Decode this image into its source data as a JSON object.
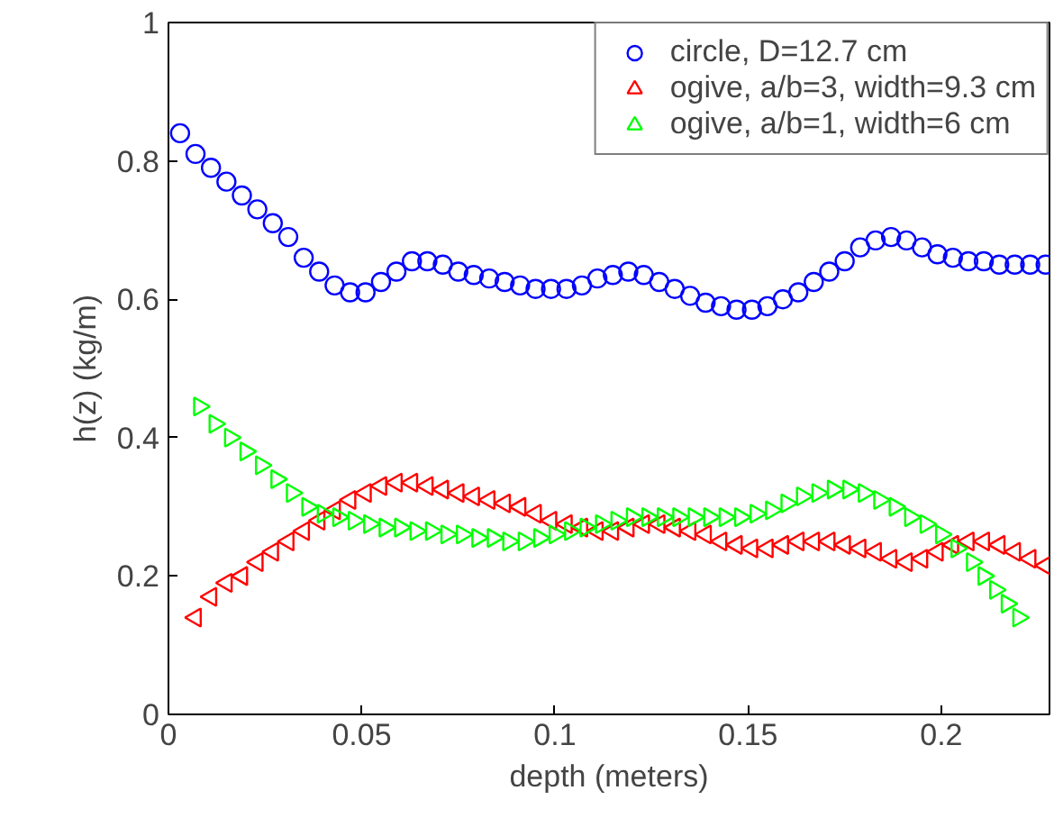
{
  "chart_data": {
    "type": "scatter",
    "xlabel": "depth (meters)",
    "ylabel": "h(z) (kg/m)",
    "xlim": [
      0,
      0.228
    ],
    "ylim": [
      0,
      1
    ],
    "xticks": [
      0,
      0.05,
      0.1,
      0.15,
      0.2
    ],
    "yticks": [
      0,
      0.2,
      0.4,
      0.6,
      0.8,
      1
    ],
    "grid": false,
    "legend": "top right",
    "series": [
      {
        "name": "circle, D=12.7 cm",
        "color": "#0000ff",
        "marker": "circle",
        "x": [
          0.003,
          0.007,
          0.011,
          0.015,
          0.019,
          0.023,
          0.027,
          0.031,
          0.035,
          0.039,
          0.043,
          0.047,
          0.051,
          0.055,
          0.059,
          0.063,
          0.067,
          0.071,
          0.075,
          0.079,
          0.083,
          0.087,
          0.091,
          0.095,
          0.099,
          0.103,
          0.107,
          0.111,
          0.115,
          0.119,
          0.123,
          0.127,
          0.131,
          0.135,
          0.139,
          0.143,
          0.147,
          0.151,
          0.155,
          0.159,
          0.163,
          0.167,
          0.171,
          0.175,
          0.179,
          0.183,
          0.187,
          0.191,
          0.195,
          0.199,
          0.203,
          0.207,
          0.211,
          0.215,
          0.219,
          0.223,
          0.227
        ],
        "values": [
          0.84,
          0.81,
          0.79,
          0.77,
          0.75,
          0.73,
          0.71,
          0.69,
          0.66,
          0.64,
          0.62,
          0.61,
          0.61,
          0.625,
          0.64,
          0.655,
          0.655,
          0.65,
          0.64,
          0.635,
          0.63,
          0.625,
          0.62,
          0.615,
          0.615,
          0.615,
          0.62,
          0.63,
          0.635,
          0.64,
          0.635,
          0.625,
          0.615,
          0.605,
          0.595,
          0.59,
          0.585,
          0.585,
          0.59,
          0.6,
          0.61,
          0.625,
          0.64,
          0.655,
          0.675,
          0.685,
          0.69,
          0.685,
          0.675,
          0.665,
          0.66,
          0.655,
          0.655,
          0.65,
          0.65,
          0.65,
          0.65
        ]
      },
      {
        "name": "ogive, a/b=3, width=9.3 cm",
        "color": "#ff0000",
        "marker": "triangle-left",
        "x": [
          0.007,
          0.011,
          0.015,
          0.019,
          0.023,
          0.027,
          0.031,
          0.035,
          0.039,
          0.043,
          0.047,
          0.051,
          0.055,
          0.059,
          0.063,
          0.067,
          0.071,
          0.075,
          0.079,
          0.083,
          0.087,
          0.091,
          0.095,
          0.099,
          0.103,
          0.107,
          0.111,
          0.115,
          0.119,
          0.123,
          0.127,
          0.131,
          0.135,
          0.139,
          0.143,
          0.147,
          0.151,
          0.155,
          0.159,
          0.163,
          0.167,
          0.171,
          0.175,
          0.179,
          0.183,
          0.187,
          0.191,
          0.195,
          0.199,
          0.203,
          0.207,
          0.211,
          0.215,
          0.219,
          0.223,
          0.227
        ],
        "values": [
          0.14,
          0.17,
          0.19,
          0.2,
          0.22,
          0.235,
          0.25,
          0.265,
          0.28,
          0.295,
          0.31,
          0.32,
          0.33,
          0.335,
          0.335,
          0.33,
          0.325,
          0.32,
          0.315,
          0.31,
          0.305,
          0.3,
          0.29,
          0.28,
          0.275,
          0.27,
          0.265,
          0.265,
          0.27,
          0.275,
          0.275,
          0.27,
          0.265,
          0.26,
          0.25,
          0.245,
          0.24,
          0.24,
          0.245,
          0.25,
          0.25,
          0.25,
          0.245,
          0.24,
          0.235,
          0.225,
          0.22,
          0.225,
          0.235,
          0.245,
          0.25,
          0.25,
          0.245,
          0.235,
          0.225,
          0.215
        ]
      },
      {
        "name": "ogive, a/b=1, width=6 cm",
        "color": "#00ff00",
        "marker": "triangle-right",
        "x": [
          0.008,
          0.012,
          0.016,
          0.02,
          0.024,
          0.028,
          0.032,
          0.036,
          0.04,
          0.044,
          0.048,
          0.052,
          0.056,
          0.06,
          0.064,
          0.068,
          0.072,
          0.076,
          0.08,
          0.084,
          0.088,
          0.092,
          0.096,
          0.1,
          0.104,
          0.108,
          0.112,
          0.116,
          0.12,
          0.124,
          0.128,
          0.132,
          0.136,
          0.14,
          0.144,
          0.148,
          0.152,
          0.156,
          0.16,
          0.164,
          0.168,
          0.172,
          0.176,
          0.18,
          0.184,
          0.188,
          0.192,
          0.196,
          0.2,
          0.204,
          0.208,
          0.211,
          0.214,
          0.217,
          0.22
        ],
        "values": [
          0.445,
          0.42,
          0.4,
          0.38,
          0.36,
          0.34,
          0.32,
          0.3,
          0.29,
          0.285,
          0.28,
          0.275,
          0.27,
          0.27,
          0.265,
          0.265,
          0.26,
          0.26,
          0.255,
          0.255,
          0.25,
          0.25,
          0.255,
          0.26,
          0.265,
          0.27,
          0.275,
          0.28,
          0.285,
          0.285,
          0.285,
          0.285,
          0.285,
          0.285,
          0.285,
          0.285,
          0.29,
          0.295,
          0.305,
          0.315,
          0.32,
          0.325,
          0.325,
          0.32,
          0.31,
          0.3,
          0.285,
          0.275,
          0.26,
          0.24,
          0.22,
          0.2,
          0.18,
          0.16,
          0.14
        ]
      }
    ]
  }
}
